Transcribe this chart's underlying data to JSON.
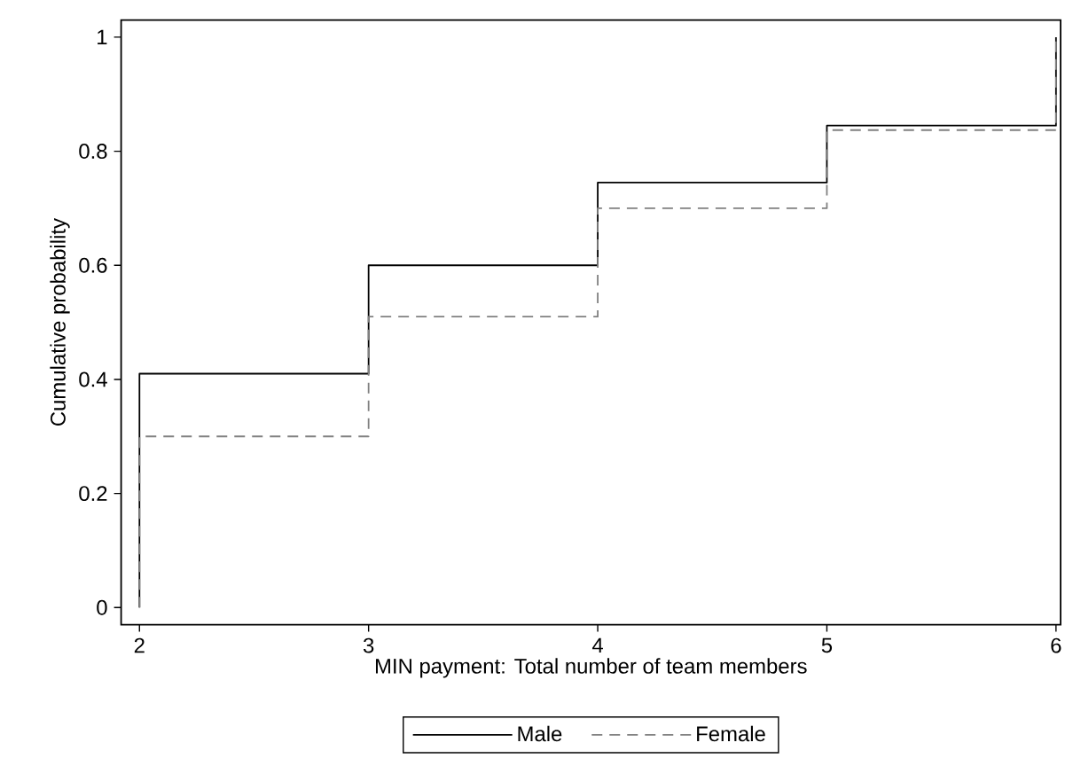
{
  "chart_data": {
    "type": "step",
    "xlabel": "MIN payment: Total number of team members",
    "ylabel": "Cumulative probability",
    "x": [
      2,
      2,
      3,
      4,
      5,
      6
    ],
    "series": [
      {
        "name": "Male",
        "color": "#000000",
        "line_style": "solid",
        "values": [
          0,
          0.41,
          0.6,
          0.745,
          0.845,
          1
        ]
      },
      {
        "name": "Female",
        "color": "#808080",
        "line_style": "dashed",
        "values": [
          0,
          0.3,
          0.51,
          0.7,
          0.837,
          1
        ]
      }
    ],
    "xlim": [
      1.92,
      6.02
    ],
    "ylim": [
      -0.03,
      1.03
    ],
    "xticks": [
      2,
      3,
      4,
      5,
      6
    ],
    "yticks": [
      0,
      0.2,
      0.4,
      0.6,
      0.8,
      1
    ],
    "marker": "none",
    "legend": "bottom"
  }
}
